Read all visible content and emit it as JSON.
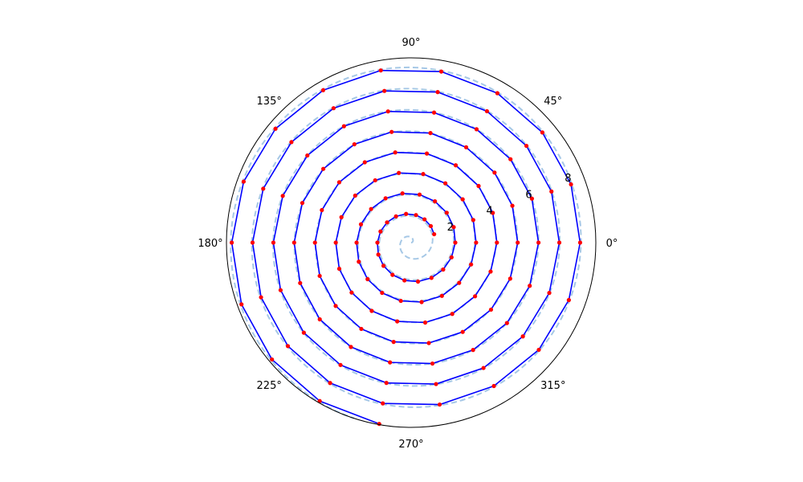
{
  "chart_data": {
    "type": "line",
    "projection": "polar",
    "grid": false,
    "theta_tick_labels": [
      "0°",
      "45°",
      "90°",
      "135°",
      "180°",
      "225°",
      "270°",
      "315°"
    ],
    "theta_ticks_deg": [
      0,
      45,
      90,
      135,
      180,
      225,
      270,
      315
    ],
    "r_tick_labels": [
      "2",
      "4",
      "6",
      "8"
    ],
    "r_ticks": [
      2,
      4,
      6,
      8
    ],
    "r_label_angle_deg": 22.5,
    "rlim": [
      0,
      8.7
    ],
    "series": [
      {
        "style": "dashed-line",
        "color": "#a6c8e6",
        "function": "r = theta / (2*pi)",
        "theta_range_deg": [
          0,
          3240
        ]
      },
      {
        "style": "solid-line-with-markers",
        "color": "#0000ff",
        "marker_color": "#ff0000",
        "function": "r = 1.1 + 0.98 * theta / (2*pi)",
        "theta_start_deg": 20,
        "theta_step_deg": 20,
        "num_points": 147
      }
    ]
  }
}
